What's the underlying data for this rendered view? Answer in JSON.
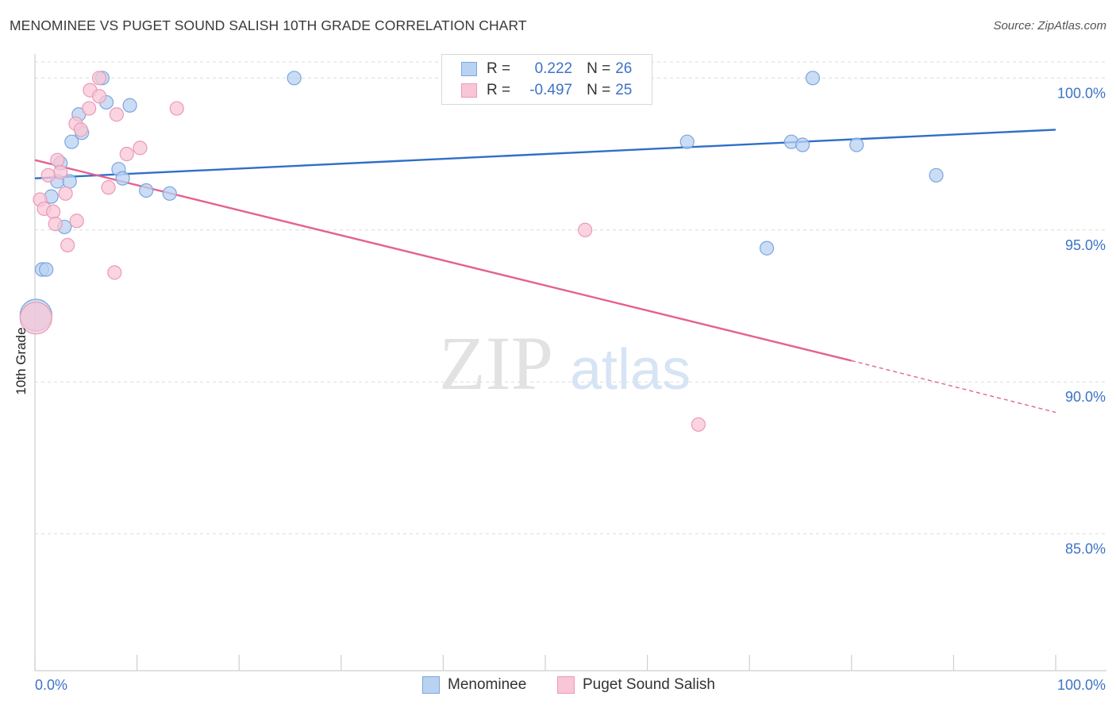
{
  "header": {
    "title": "MENOMINEE VS PUGET SOUND SALISH 10TH GRADE CORRELATION CHART",
    "source": "Source: ZipAtlas.com"
  },
  "watermark": {
    "zip": "ZIP",
    "atlas": "atlas"
  },
  "legend": {
    "r_label": "R =",
    "n_label": "N =",
    "series": [
      {
        "r": "0.222",
        "n": "26"
      },
      {
        "r": "-0.497",
        "n": "25"
      }
    ]
  },
  "colors": {
    "blue_fill": "#b9d2f2",
    "blue_stroke": "#7aa6de",
    "blue_line": "#2f6fc8",
    "pink_fill": "#f8c6d6",
    "pink_stroke": "#ec9ab5",
    "pink_line": "#e4628e",
    "tick_text": "#3d72c8",
    "grid": "#dcdcdc"
  },
  "chart_data": {
    "type": "scatter",
    "title": "MENOMINEE VS PUGET SOUND SALISH 10TH GRADE CORRELATION CHART",
    "xlabel": "",
    "ylabel": "10th Grade",
    "xlim": [
      0,
      100
    ],
    "ylim": [
      80.5,
      101
    ],
    "x_tick_labels": [
      "0.0%",
      "100.0%"
    ],
    "y_ticks": [
      100,
      95,
      90,
      85
    ],
    "y_tick_labels": [
      "100.0%",
      "95.0%",
      "90.0%",
      "85.0%"
    ],
    "grid": true,
    "legend_position": "bottom",
    "series": [
      {
        "name": "Menominee",
        "color": "blue",
        "r": 0.222,
        "n": 26,
        "points": [
          [
            6.6,
            100.0
          ],
          [
            25.4,
            100.0
          ],
          [
            76.2,
            100.0
          ],
          [
            7.0,
            99.2
          ],
          [
            9.3,
            99.1
          ],
          [
            4.3,
            98.8
          ],
          [
            4.6,
            98.2
          ],
          [
            3.6,
            97.9
          ],
          [
            63.9,
            97.9
          ],
          [
            74.1,
            97.9
          ],
          [
            75.2,
            97.8
          ],
          [
            80.5,
            97.8
          ],
          [
            2.5,
            97.2
          ],
          [
            8.2,
            97.0
          ],
          [
            8.6,
            96.7
          ],
          [
            88.3,
            96.8
          ],
          [
            2.2,
            96.6
          ],
          [
            3.4,
            96.6
          ],
          [
            10.9,
            96.3
          ],
          [
            13.2,
            96.2
          ],
          [
            1.6,
            96.1
          ],
          [
            2.9,
            95.1
          ],
          [
            71.7,
            94.4
          ],
          [
            0.7,
            93.7
          ],
          [
            1.1,
            93.7
          ],
          [
            0.1,
            92.2
          ]
        ],
        "big_point_index": 25,
        "trend": {
          "x": [
            0,
            100
          ],
          "y": [
            96.7,
            98.3
          ]
        }
      },
      {
        "name": "Puget Sound Salish",
        "color": "pink",
        "r": -0.497,
        "n": 25,
        "points": [
          [
            6.3,
            100.0
          ],
          [
            5.4,
            99.6
          ],
          [
            6.3,
            99.4
          ],
          [
            5.3,
            99.0
          ],
          [
            13.9,
            99.0
          ],
          [
            8.0,
            98.8
          ],
          [
            4.0,
            98.5
          ],
          [
            4.5,
            98.3
          ],
          [
            10.3,
            97.7
          ],
          [
            9.0,
            97.5
          ],
          [
            2.2,
            97.3
          ],
          [
            2.5,
            96.9
          ],
          [
            1.3,
            96.8
          ],
          [
            7.2,
            96.4
          ],
          [
            3.0,
            96.2
          ],
          [
            0.5,
            96.0
          ],
          [
            0.9,
            95.7
          ],
          [
            1.8,
            95.6
          ],
          [
            4.1,
            95.3
          ],
          [
            2.0,
            95.2
          ],
          [
            53.9,
            95.0
          ],
          [
            3.2,
            94.5
          ],
          [
            7.8,
            93.6
          ],
          [
            65.0,
            88.6
          ],
          [
            0.1,
            92.1
          ]
        ],
        "big_point_index": 24,
        "trend": {
          "x": [
            0,
            80
          ],
          "y": [
            97.3,
            90.7
          ],
          "dashed_to": {
            "x": 100,
            "y": 89.0
          }
        }
      }
    ]
  }
}
